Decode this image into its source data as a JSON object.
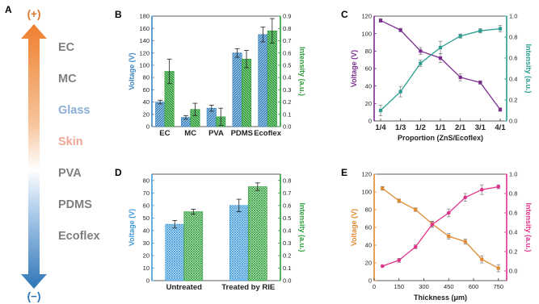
{
  "panel_a": {
    "label": "A",
    "top_sign": "(+)",
    "bottom_sign": "(−)",
    "colors": {
      "top": "#ef7f2e",
      "bottom": "#2e75b6",
      "sign": "#d9772f"
    },
    "materials": [
      {
        "name": "EC",
        "color": "#7f7f7f"
      },
      {
        "name": "MC",
        "color": "#7f7f7f"
      },
      {
        "name": "Glass",
        "color": "#8eaed8"
      },
      {
        "name": "Skin",
        "color": "#f0a595"
      },
      {
        "name": "PVA",
        "color": "#7f7f7f"
      },
      {
        "name": "PDMS",
        "color": "#7f7f7f"
      },
      {
        "name": "Ecoflex",
        "color": "#7f7f7f"
      }
    ]
  },
  "chart_data": [
    {
      "panel": "B",
      "type": "bar",
      "categories": [
        "EC",
        "MC",
        "PVA",
        "PDMS",
        "Ecoflex"
      ],
      "ylabel": "Voltage (V)",
      "y2label": "Intensity (a.u.)",
      "ylim": [
        0,
        180
      ],
      "y2lim": [
        0,
        0.9
      ],
      "yticks": [
        0,
        20,
        40,
        60,
        80,
        100,
        120,
        140,
        160,
        180
      ],
      "y2ticks": [
        "0.0",
        "0.1",
        "0.2",
        "0.3",
        "0.4",
        "0.5",
        "0.6",
        "0.7",
        "0.8",
        "0.9"
      ],
      "series": [
        {
          "axis": "left",
          "color": "#3e86c2",
          "values": [
            40,
            15,
            30,
            120,
            150
          ],
          "errors": [
            3,
            3,
            5,
            7,
            12
          ]
        },
        {
          "axis": "right",
          "color": "#2e9d3a",
          "values": [
            0.45,
            0.14,
            0.08,
            0.55,
            0.78
          ],
          "errors": [
            0.1,
            0.05,
            0.07,
            0.07,
            0.1
          ]
        }
      ]
    },
    {
      "panel": "C",
      "type": "line",
      "categories": [
        "1/4",
        "1/3",
        "1/2",
        "1/1",
        "2/1",
        "3/1",
        "4/1"
      ],
      "xlabel": "Proportion (ZnS/Ecoflex)",
      "ylabel": "Voltage (V)",
      "y2label": "Intensity (a.u.)",
      "ylim": [
        0,
        120
      ],
      "y2lim": [
        0,
        1.0
      ],
      "yticks": [
        0,
        20,
        40,
        60,
        80,
        100,
        120
      ],
      "y2ticks": [
        "0.0",
        "0.2",
        "0.4",
        "0.6",
        "0.8",
        "1.0"
      ],
      "series": [
        {
          "axis": "left",
          "color": "#7b2d8e",
          "marker": "square",
          "values": [
            115,
            104,
            80,
            72,
            50,
            44,
            13
          ],
          "errors": [
            2,
            2,
            4,
            5,
            4,
            2,
            2
          ]
        },
        {
          "axis": "right",
          "color": "#2a9d8f",
          "marker": "square",
          "values": [
            0.1,
            0.28,
            0.55,
            0.7,
            0.81,
            0.86,
            0.88
          ],
          "errors": [
            0.05,
            0.05,
            0.03,
            0.06,
            0.02,
            0.02,
            0.03
          ]
        }
      ]
    },
    {
      "panel": "D",
      "type": "bar",
      "categories": [
        "Untreated",
        "Treated by RIE"
      ],
      "ylabel": "Voltage (V)",
      "y2label": "Intensity (a.u.)",
      "ylim": [
        0,
        85
      ],
      "y2lim": [
        0,
        0.85
      ],
      "yticks": [
        0,
        10,
        20,
        30,
        40,
        50,
        60,
        70,
        80
      ],
      "y2ticks": [
        "0.0",
        "0.1",
        "0.2",
        "0.3",
        "0.4",
        "0.5",
        "0.6",
        "0.7",
        "0.8"
      ],
      "series": [
        {
          "axis": "left",
          "color": "#3e9ad8",
          "values": [
            45,
            60
          ],
          "errors": [
            3,
            5
          ]
        },
        {
          "axis": "right",
          "color": "#2e9d3a",
          "values": [
            0.55,
            0.75
          ],
          "errors": [
            0.02,
            0.03
          ]
        }
      ]
    },
    {
      "panel": "E",
      "type": "line",
      "x": [
        50,
        150,
        250,
        350,
        450,
        550,
        650,
        750
      ],
      "xlabel": "Thickness (μm)",
      "ylabel": "Voltage (V)",
      "y2label": "Intensity (a.u.)",
      "xlim": [
        0,
        800
      ],
      "ylim": [
        0,
        120
      ],
      "y2lim": [
        -0.1,
        1.0
      ],
      "xticks": [
        "0",
        "150",
        "300",
        "450",
        "600",
        "750"
      ],
      "yticks": [
        0,
        20,
        40,
        60,
        80,
        100,
        120
      ],
      "y2ticks": [
        "0.0",
        "0.2",
        "0.4",
        "0.6",
        "0.8",
        "1.0"
      ],
      "series": [
        {
          "axis": "left",
          "color": "#e08a30",
          "marker": "square",
          "values": [
            104,
            90,
            80,
            64,
            50,
            44,
            24,
            14
          ],
          "errors": [
            2,
            2,
            2,
            3,
            3,
            3,
            4,
            4
          ]
        },
        {
          "axis": "right",
          "color": "#e0348c",
          "marker": "circle",
          "values": [
            0.05,
            0.11,
            0.25,
            0.48,
            0.6,
            0.76,
            0.84,
            0.87
          ],
          "errors": [
            0.01,
            0.02,
            0.02,
            0.03,
            0.04,
            0.04,
            0.05,
            0.02
          ]
        }
      ]
    }
  ]
}
